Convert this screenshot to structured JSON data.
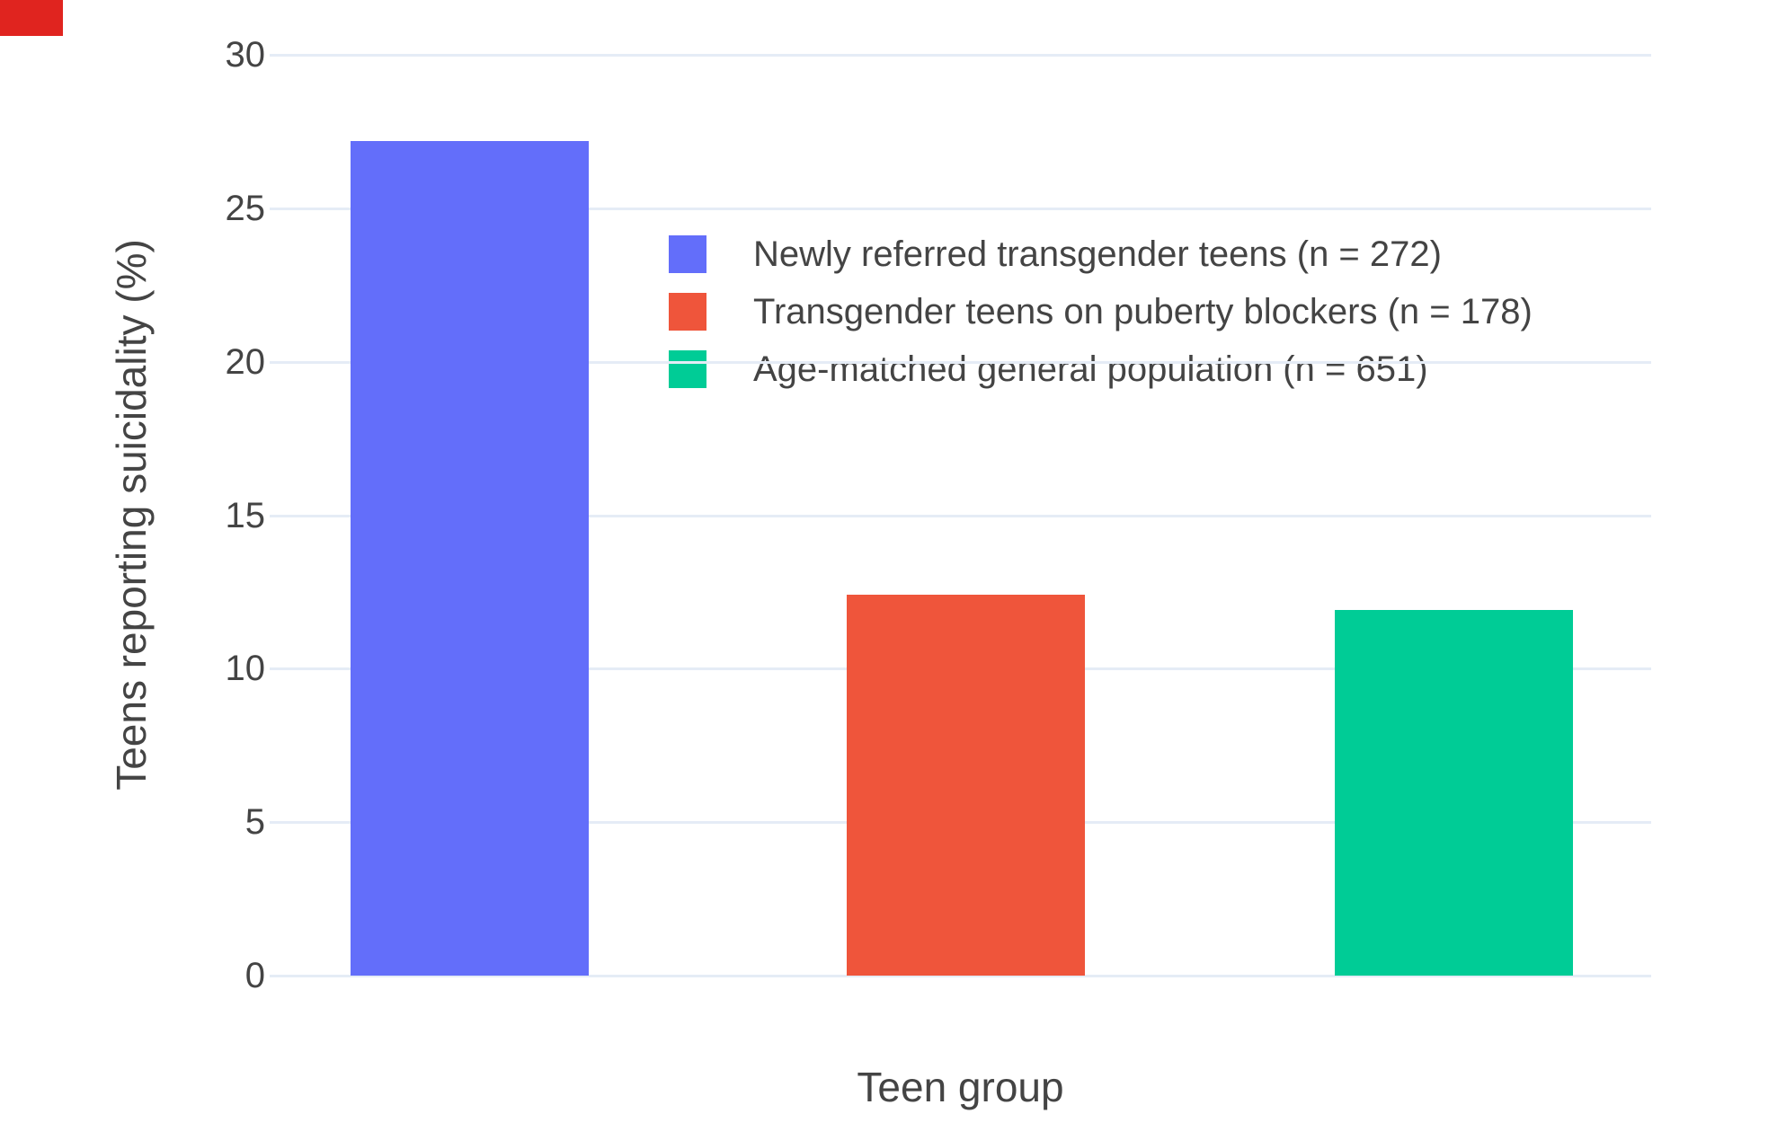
{
  "page": {
    "background": "#ffffff",
    "text_color": "#444444",
    "grid_color": "#E5ECF6"
  },
  "corner_marker": {
    "color": "#e0241f"
  },
  "chart_data": {
    "type": "bar",
    "title": "",
    "xlabel": "Teen group",
    "ylabel": "Teens reporting suicidality (%)",
    "categories": [
      "Newly referred transgender teens (n = 272)",
      "Transgender teens on puberty blockers (n = 178)",
      "Age-matched general population (n = 651)"
    ],
    "values": [
      27.2,
      12.4,
      11.9
    ],
    "sample_sizes": [
      272,
      178,
      651
    ],
    "colors": [
      "#636EFA",
      "#EF553B",
      "#00CC96"
    ],
    "ylim": [
      0,
      30
    ],
    "yticks": [
      0,
      5,
      10,
      15,
      20,
      25,
      30
    ],
    "grid": true,
    "legend_position": "inside top-right",
    "bars": [
      {
        "label": "Newly referred transgender teens (n = 272)",
        "value": 27.2,
        "color": "#636EFA"
      },
      {
        "label": "Transgender teens on puberty blockers (n = 178)",
        "value": 12.4,
        "color": "#EF553B"
      },
      {
        "label": "Age-matched general population (n = 651)",
        "value": 11.9,
        "color": "#00CC96"
      }
    ]
  }
}
